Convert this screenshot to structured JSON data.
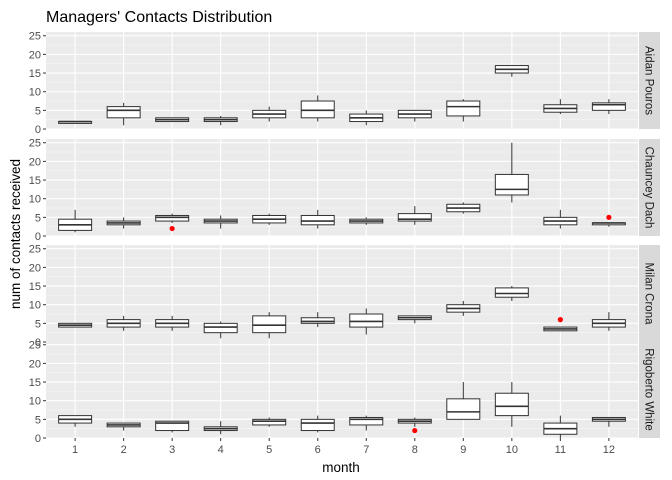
{
  "chart_data": {
    "type": "boxplot",
    "title": "Managers' Contacts Distribution",
    "xlabel": "month",
    "ylabel": "num of contacts received",
    "categories": [
      "1",
      "2",
      "3",
      "4",
      "5",
      "6",
      "7",
      "8",
      "9",
      "10",
      "11",
      "12"
    ],
    "ylim": [
      0,
      26
    ],
    "yticks": [
      0,
      5,
      10,
      15,
      20,
      25
    ],
    "grid": true,
    "facet_strip_position": "right",
    "colors": {
      "panel_bg": "#ebebeb",
      "grid_major": "#ffffff",
      "strip_bg": "#d9d9d9",
      "box_fill": "#ffffff",
      "box_line": "#333333",
      "outlier": "#ff0000"
    },
    "panels": [
      {
        "label": "Aidan Pouros",
        "boxes": [
          {
            "month": "1",
            "whislo": 1.5,
            "q1": 1.5,
            "med": 2,
            "q3": 2,
            "whishi": 2
          },
          {
            "month": "2",
            "whislo": 1,
            "q1": 3,
            "med": 5,
            "q3": 6,
            "whishi": 7
          },
          {
            "month": "3",
            "whislo": 2,
            "q1": 2,
            "med": 2.5,
            "q3": 3,
            "whishi": 3
          },
          {
            "month": "4",
            "whislo": 1,
            "q1": 2,
            "med": 2.5,
            "q3": 3,
            "whishi": 3.5
          },
          {
            "month": "5",
            "whislo": 2,
            "q1": 3,
            "med": 4,
            "q3": 5,
            "whishi": 6
          },
          {
            "month": "6",
            "whislo": 2,
            "q1": 3,
            "med": 5,
            "q3": 7.5,
            "whishi": 9
          },
          {
            "month": "7",
            "whislo": 1,
            "q1": 2,
            "med": 3,
            "q3": 4,
            "whishi": 5
          },
          {
            "month": "8",
            "whislo": 2,
            "q1": 3,
            "med": 4,
            "q3": 5,
            "whishi": 5
          },
          {
            "month": "9",
            "whislo": 2,
            "q1": 3.5,
            "med": 6,
            "q3": 7.5,
            "whishi": 8
          },
          {
            "month": "10",
            "whislo": 14,
            "q1": 15,
            "med": 16,
            "q3": 17,
            "whishi": 17
          },
          {
            "month": "11",
            "whislo": 4,
            "q1": 4.5,
            "med": 5.5,
            "q3": 6.5,
            "whishi": 8
          },
          {
            "month": "12",
            "whislo": 4,
            "q1": 5,
            "med": 6.5,
            "q3": 7,
            "whishi": 8
          }
        ],
        "outliers": []
      },
      {
        "label": "Chauncey Dach",
        "boxes": [
          {
            "month": "1",
            "whislo": 1,
            "q1": 1.5,
            "med": 3,
            "q3": 4.5,
            "whishi": 7
          },
          {
            "month": "2",
            "whislo": 2,
            "q1": 3,
            "med": 3.5,
            "q3": 4,
            "whishi": 5
          },
          {
            "month": "3",
            "whislo": 3.5,
            "q1": 4,
            "med": 5,
            "q3": 5.5,
            "whishi": 6
          },
          {
            "month": "4",
            "whislo": 2,
            "q1": 3.5,
            "med": 4,
            "q3": 4.5,
            "whishi": 5.5
          },
          {
            "month": "5",
            "whislo": 3,
            "q1": 3.5,
            "med": 4.5,
            "q3": 5.5,
            "whishi": 6
          },
          {
            "month": "6",
            "whislo": 2,
            "q1": 3,
            "med": 4,
            "q3": 5.5,
            "whishi": 7
          },
          {
            "month": "7",
            "whislo": 3,
            "q1": 3.5,
            "med": 4,
            "q3": 4.5,
            "whishi": 5
          },
          {
            "month": "8",
            "whislo": 3,
            "q1": 4,
            "med": 4.5,
            "q3": 6,
            "whishi": 8
          },
          {
            "month": "9",
            "whislo": 6,
            "q1": 6.5,
            "med": 7.5,
            "q3": 8.5,
            "whishi": 9
          },
          {
            "month": "10",
            "whislo": 9,
            "q1": 11,
            "med": 12.5,
            "q3": 16.5,
            "whishi": 25
          },
          {
            "month": "11",
            "whislo": 2,
            "q1": 3,
            "med": 4,
            "q3": 5,
            "whishi": 7
          },
          {
            "month": "12",
            "whislo": 2.5,
            "q1": 3,
            "med": 3.5,
            "q3": 3.5,
            "whishi": 3.5
          }
        ],
        "outliers": [
          {
            "month": "3",
            "value": 2
          },
          {
            "month": "12",
            "value": 5
          }
        ]
      },
      {
        "label": "Milan Crona",
        "boxes": [
          {
            "month": "1",
            "whislo": 4,
            "q1": 4,
            "med": 4.5,
            "q3": 5,
            "whishi": 5
          },
          {
            "month": "2",
            "whislo": 3,
            "q1": 4,
            "med": 5,
            "q3": 6,
            "whishi": 7
          },
          {
            "month": "3",
            "whislo": 3,
            "q1": 4,
            "med": 5,
            "q3": 6,
            "whishi": 7
          },
          {
            "month": "4",
            "whislo": 1,
            "q1": 2.5,
            "med": 4,
            "q3": 5,
            "whishi": 5.5
          },
          {
            "month": "5",
            "whislo": 1,
            "q1": 2.5,
            "med": 4.5,
            "q3": 7,
            "whishi": 8
          },
          {
            "month": "6",
            "whislo": 4,
            "q1": 5,
            "med": 5.5,
            "q3": 6.5,
            "whishi": 8
          },
          {
            "month": "7",
            "whislo": 2,
            "q1": 4,
            "med": 5.5,
            "q3": 7.5,
            "whishi": 9
          },
          {
            "month": "8",
            "whislo": 5,
            "q1": 6,
            "med": 6.5,
            "q3": 7,
            "whishi": 7
          },
          {
            "month": "9",
            "whislo": 7,
            "q1": 8,
            "med": 9,
            "q3": 10,
            "whishi": 11
          },
          {
            "month": "10",
            "whislo": 11,
            "q1": 12,
            "med": 13,
            "q3": 14.5,
            "whishi": 15
          },
          {
            "month": "11",
            "whislo": 3,
            "q1": 3,
            "med": 3.5,
            "q3": 4,
            "whishi": 4
          },
          {
            "month": "12",
            "whislo": 3,
            "q1": 4,
            "med": 5,
            "q3": 6,
            "whishi": 8
          }
        ],
        "outliers": [
          {
            "month": "11",
            "value": 6
          }
        ]
      },
      {
        "label": "Rigoberto White",
        "boxes": [
          {
            "month": "1",
            "whislo": 3,
            "q1": 4,
            "med": 5,
            "q3": 6,
            "whishi": 6
          },
          {
            "month": "2",
            "whislo": 2,
            "q1": 3,
            "med": 3.5,
            "q3": 4,
            "whishi": 4
          },
          {
            "month": "3",
            "whislo": 1.5,
            "q1": 2,
            "med": 4,
            "q3": 4.5,
            "whishi": 4.5
          },
          {
            "month": "4",
            "whislo": 1,
            "q1": 2,
            "med": 2.5,
            "q3": 3,
            "whishi": 4.5
          },
          {
            "month": "5",
            "whislo": 3,
            "q1": 3.5,
            "med": 4.5,
            "q3": 5,
            "whishi": 5.5
          },
          {
            "month": "6",
            "whislo": 1.5,
            "q1": 2,
            "med": 4,
            "q3": 5,
            "whishi": 6
          },
          {
            "month": "7",
            "whislo": 2,
            "q1": 3.5,
            "med": 5,
            "q3": 5.5,
            "whishi": 6
          },
          {
            "month": "8",
            "whislo": 3,
            "q1": 4,
            "med": 4.5,
            "q3": 5,
            "whishi": 5.5
          },
          {
            "month": "9",
            "whislo": 5,
            "q1": 5,
            "med": 7,
            "q3": 10.5,
            "whishi": 15
          },
          {
            "month": "10",
            "whislo": 3,
            "q1": 6,
            "med": 8.5,
            "q3": 12,
            "whishi": 15
          },
          {
            "month": "11",
            "whislo": 0,
            "q1": 1,
            "med": 2.5,
            "q3": 4,
            "whishi": 6
          },
          {
            "month": "12",
            "whislo": 3,
            "q1": 4.5,
            "med": 5,
            "q3": 5.5,
            "whishi": 5.5
          }
        ],
        "outliers": [
          {
            "month": "8",
            "value": 2
          }
        ]
      }
    ]
  }
}
